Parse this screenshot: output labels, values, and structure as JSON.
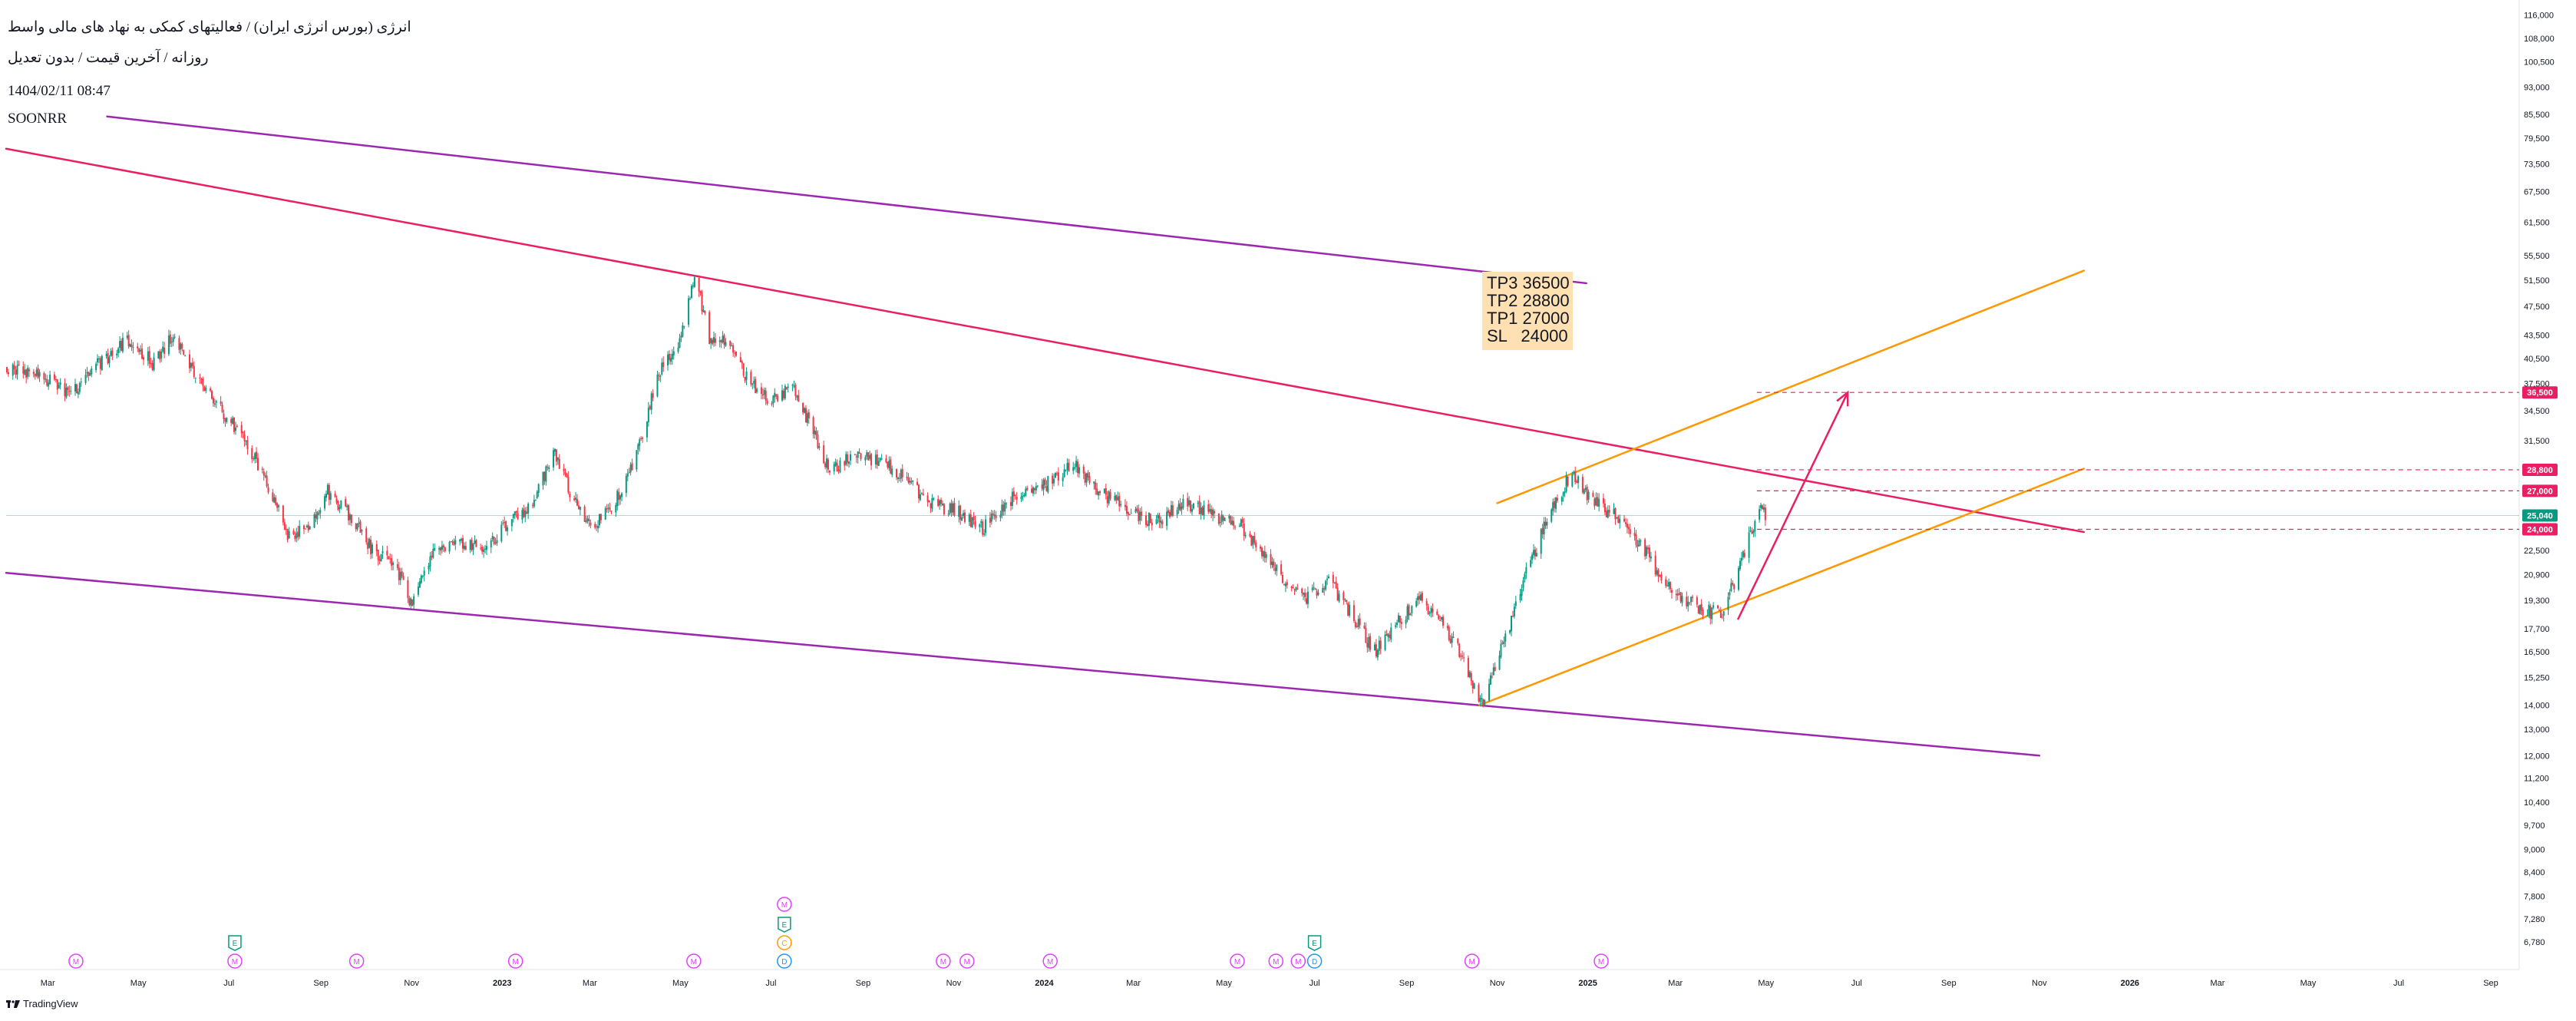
{
  "header": {
    "title": "انرژی (بورس انرژی ایران) / فعالیتهای کمکی به نهاد های مالی واسط",
    "subtitle": "روزانه / آخرین قیمت / بدون تعدیل",
    "datetime": "1404/02/11 08:47",
    "symbol": "SOONRR"
  },
  "brand": {
    "label": "TradingView"
  },
  "note": {
    "lines": [
      "TP3 36500",
      "TP2 28800",
      "TP1 27000",
      "SL   24000"
    ]
  },
  "colors": {
    "up": "#089981",
    "down": "#f23645",
    "channel": "#9c27b0",
    "trendline": "#e91e63",
    "wedge": "#ff9800",
    "arrow": "#e91e63",
    "level": "#e91e63",
    "note_bg": "#ffe0b2",
    "current": "#089981"
  },
  "chart_data": {
    "type": "candlestick",
    "y_scale": "log",
    "ylim": [
      6500,
      117500
    ],
    "y_ticks": [
      "116,000",
      "108,000",
      "100,500",
      "93,000",
      "85,500",
      "79,500",
      "73,500",
      "67,500",
      "61,500",
      "55,500",
      "51,500",
      "47,500",
      "43,500",
      "40,500",
      "37,500",
      "34,500",
      "31,500",
      "28,800",
      "27,000",
      "25,040",
      "24,000",
      "22,500",
      "20,900",
      "19,300",
      "17,700",
      "16,500",
      "15,250",
      "14,000",
      "13,000",
      "12,000",
      "11,200",
      "10,400",
      "9,700",
      "9,000",
      "8,400",
      "7,800",
      "7,280",
      "6,780"
    ],
    "x_ticks": [
      "Mar",
      "May",
      "Jul",
      "Sep",
      "Nov",
      "2023",
      "Mar",
      "May",
      "Jul",
      "Sep",
      "Nov",
      "2024",
      "Mar",
      "May",
      "Jul",
      "Sep",
      "Nov",
      "2025",
      "Mar",
      "May",
      "Jul",
      "Sep",
      "Nov",
      "2026",
      "Mar",
      "May",
      "Jul",
      "Sep"
    ],
    "x_tick_dates": [
      "2022-03-01",
      "2022-05-01",
      "2022-07-01",
      "2022-09-01",
      "2022-11-01",
      "2023-01-01",
      "2023-03-01",
      "2023-05-01",
      "2023-07-01",
      "2023-09-01",
      "2023-11-01",
      "2024-01-01",
      "2024-03-01",
      "2024-05-01",
      "2024-07-01",
      "2024-09-01",
      "2024-11-01",
      "2025-01-01",
      "2025-03-01",
      "2025-05-01",
      "2025-07-01",
      "2025-09-01",
      "2025-11-01",
      "2026-01-01",
      "2026-03-01",
      "2026-05-01",
      "2026-07-01",
      "2026-09-01"
    ],
    "price_path": [
      [
        "2022-02-01",
        39500
      ],
      [
        "2022-02-25",
        38500
      ],
      [
        "2022-03-15",
        36000
      ],
      [
        "2022-04-01",
        39500
      ],
      [
        "2022-04-25",
        43000
      ],
      [
        "2022-05-10",
        40000
      ],
      [
        "2022-05-25",
        43500
      ],
      [
        "2022-06-10",
        38000
      ],
      [
        "2022-06-25",
        34500
      ],
      [
        "2022-07-10",
        32000
      ],
      [
        "2022-07-25",
        28000
      ],
      [
        "2022-08-10",
        23500
      ],
      [
        "2022-08-25",
        24500
      ],
      [
        "2022-09-05",
        27000
      ],
      [
        "2022-09-20",
        25000
      ],
      [
        "2022-10-05",
        22500
      ],
      [
        "2022-10-20",
        21500
      ],
      [
        "2022-11-01",
        19000
      ],
      [
        "2022-11-15",
        22500
      ],
      [
        "2022-12-01",
        23000
      ],
      [
        "2022-12-20",
        22500
      ],
      [
        "2023-01-05",
        24500
      ],
      [
        "2023-01-20",
        26000
      ],
      [
        "2023-02-05",
        30500
      ],
      [
        "2023-02-15",
        27000
      ],
      [
        "2023-03-01",
        24000
      ],
      [
        "2023-03-15",
        25500
      ],
      [
        "2023-04-01",
        30000
      ],
      [
        "2023-04-15",
        38500
      ],
      [
        "2023-05-01",
        43000
      ],
      [
        "2023-05-10",
        53000
      ],
      [
        "2023-05-20",
        43000
      ],
      [
        "2023-06-01",
        42500
      ],
      [
        "2023-06-15",
        38000
      ],
      [
        "2023-07-01",
        35500
      ],
      [
        "2023-07-15",
        37500
      ],
      [
        "2023-07-25",
        33500
      ],
      [
        "2023-08-10",
        28500
      ],
      [
        "2023-08-25",
        30500
      ],
      [
        "2023-09-10",
        29500
      ],
      [
        "2023-09-25",
        28500
      ],
      [
        "2023-10-15",
        26000
      ],
      [
        "2023-11-01",
        25500
      ],
      [
        "2023-11-20",
        24000
      ],
      [
        "2023-12-10",
        26500
      ],
      [
        "2024-01-01",
        27500
      ],
      [
        "2024-01-20",
        29500
      ],
      [
        "2024-02-05",
        27000
      ],
      [
        "2024-02-25",
        25500
      ],
      [
        "2024-03-15",
        24500
      ],
      [
        "2024-04-05",
        26000
      ],
      [
        "2024-04-25",
        25000
      ],
      [
        "2024-05-10",
        24500
      ],
      [
        "2024-05-25",
        22500
      ],
      [
        "2024-06-10",
        20500
      ],
      [
        "2024-06-25",
        19500
      ],
      [
        "2024-07-10",
        20500
      ],
      [
        "2024-07-25",
        18500
      ],
      [
        "2024-08-10",
        16500
      ],
      [
        "2024-08-25",
        18000
      ],
      [
        "2024-09-10",
        19300
      ],
      [
        "2024-09-25",
        18000
      ],
      [
        "2024-10-10",
        16000
      ],
      [
        "2024-10-20",
        14000
      ],
      [
        "2024-11-05",
        17000
      ],
      [
        "2024-11-20",
        21000
      ],
      [
        "2024-12-05",
        25000
      ],
      [
        "2024-12-20",
        28500
      ],
      [
        "2025-01-05",
        26000
      ],
      [
        "2025-01-20",
        25000
      ],
      [
        "2025-02-05",
        23000
      ],
      [
        "2025-02-20",
        20500
      ],
      [
        "2025-03-05",
        19500
      ],
      [
        "2025-03-20",
        18700
      ],
      [
        "2025-04-01",
        18500
      ],
      [
        "2025-04-15",
        22000
      ],
      [
        "2025-04-25",
        25500
      ],
      [
        "2025-05-01",
        25040
      ]
    ],
    "last_price": 25040,
    "last_price_label": "25,040",
    "levels": [
      {
        "name": "TP3",
        "value": 36500,
        "label": "36,500"
      },
      {
        "name": "TP2",
        "value": 28800,
        "label": "28,800"
      },
      {
        "name": "TP1",
        "value": 27000,
        "label": "27,000"
      },
      {
        "name": "SL",
        "value": 24000,
        "label": "24,000"
      }
    ],
    "level_start_date": "2025-04-30",
    "drawings": {
      "channel_upper": [
        [
          "2022-04-10",
          85000
        ],
        [
          "2024-12-31",
          51000
        ]
      ],
      "channel_lower": [
        [
          "2022-02-01",
          21000
        ],
        [
          "2025-11-01",
          12000
        ]
      ],
      "downtrend": [
        [
          "2022-02-01",
          77000
        ],
        [
          "2025-12-01",
          23800
        ]
      ],
      "wedge_upper": [
        [
          "2024-11-01",
          26000
        ],
        [
          "2025-12-01",
          53000
        ]
      ],
      "wedge_lower": [
        [
          "2024-10-20",
          14000
        ],
        [
          "2025-12-01",
          28900
        ]
      ],
      "arrow": [
        [
          "2025-04-12",
          18200
        ],
        [
          "2025-06-25",
          36500
        ]
      ]
    },
    "events": [
      {
        "date": "2022-03-20",
        "badges": [
          "M"
        ]
      },
      {
        "date": "2022-07-05",
        "badges": [
          "E",
          "M"
        ]
      },
      {
        "date": "2022-09-25",
        "badges": [
          "M"
        ]
      },
      {
        "date": "2023-01-10",
        "badges": [
          "M"
        ]
      },
      {
        "date": "2023-05-10",
        "badges": [
          "M"
        ]
      },
      {
        "date": "2023-07-10",
        "badges": [
          "M",
          "E",
          "C",
          "D"
        ]
      },
      {
        "date": "2023-10-25",
        "badges": [
          "M"
        ]
      },
      {
        "date": "2023-11-10",
        "badges": [
          "M"
        ]
      },
      {
        "date": "2024-01-05",
        "badges": [
          "M"
        ]
      },
      {
        "date": "2024-05-10",
        "badges": [
          "M"
        ]
      },
      {
        "date": "2024-06-05",
        "badges": [
          "M"
        ]
      },
      {
        "date": "2024-06-20",
        "badges": [
          "M"
        ]
      },
      {
        "date": "2024-07-01",
        "badges": [
          "E",
          "D"
        ]
      },
      {
        "date": "2024-10-15",
        "badges": [
          "M"
        ]
      },
      {
        "date": "2025-01-10",
        "badges": [
          "M"
        ]
      }
    ],
    "badge_colors": {
      "M": "#e040fb",
      "E": "#089981",
      "C": "#ff9800",
      "D": "#2196f3"
    }
  }
}
